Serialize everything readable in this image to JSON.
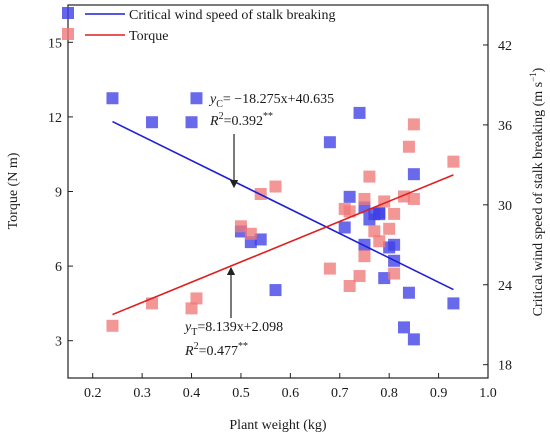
{
  "chart_data": {
    "type": "scatter",
    "xlabel": "Plant weight (kg)",
    "ylabel_left": "Torque (N m)",
    "ylabel_right_prefix": "Critical wind speed of stalk breaking (m s",
    "ylabel_right_sup": "−1",
    "ylabel_right_suffix": ")",
    "xlim": [
      0.15,
      1.0
    ],
    "ylim_left": [
      1.5,
      16.5
    ],
    "ylim_right": [
      17.0,
      45.0
    ],
    "x_ticks": [
      0.2,
      0.3,
      0.4,
      0.5,
      0.6,
      0.7,
      0.8,
      0.9,
      1.0
    ],
    "y_left_ticks": [
      3,
      6,
      9,
      12,
      15
    ],
    "y_right_ticks": [
      18,
      24,
      30,
      36,
      42
    ],
    "grid": false,
    "legend_position": "top-left",
    "series": [
      {
        "name": "Critical wind speed of stalk breaking",
        "axis": "right",
        "color": "#3f3fe6",
        "points": [
          [
            0.24,
            38.0
          ],
          [
            0.32,
            36.2
          ],
          [
            0.4,
            36.2
          ],
          [
            0.41,
            38.0
          ],
          [
            0.5,
            28.0
          ],
          [
            0.52,
            27.2
          ],
          [
            0.54,
            27.4
          ],
          [
            0.57,
            23.6
          ],
          [
            0.68,
            34.7
          ],
          [
            0.71,
            28.3
          ],
          [
            0.72,
            30.6
          ],
          [
            0.74,
            36.9
          ],
          [
            0.75,
            29.8
          ],
          [
            0.76,
            28.9
          ],
          [
            0.77,
            29.3
          ],
          [
            0.78,
            29.3
          ],
          [
            0.79,
            24.5
          ],
          [
            0.8,
            26.8
          ],
          [
            0.81,
            25.8
          ],
          [
            0.81,
            27.0
          ],
          [
            0.83,
            20.8
          ],
          [
            0.84,
            23.4
          ],
          [
            0.85,
            19.9
          ],
          [
            0.85,
            32.3
          ],
          [
            0.93,
            22.6
          ],
          [
            0.75,
            27.0
          ],
          [
            0.78,
            29.4
          ]
        ]
      },
      {
        "name": "Torque",
        "axis": "left",
        "color": "#f07878",
        "points": [
          [
            0.24,
            3.6
          ],
          [
            0.32,
            4.5
          ],
          [
            0.4,
            4.3
          ],
          [
            0.41,
            4.7
          ],
          [
            0.5,
            7.6
          ],
          [
            0.52,
            7.3
          ],
          [
            0.54,
            8.9
          ],
          [
            0.57,
            9.2
          ],
          [
            0.68,
            5.9
          ],
          [
            0.71,
            8.3
          ],
          [
            0.72,
            5.2
          ],
          [
            0.74,
            5.6
          ],
          [
            0.75,
            8.7
          ],
          [
            0.76,
            9.6
          ],
          [
            0.77,
            7.4
          ],
          [
            0.78,
            7.0
          ],
          [
            0.79,
            8.6
          ],
          [
            0.8,
            7.5
          ],
          [
            0.81,
            8.1
          ],
          [
            0.81,
            5.7
          ],
          [
            0.83,
            8.8
          ],
          [
            0.84,
            10.8
          ],
          [
            0.85,
            11.7
          ],
          [
            0.85,
            8.7
          ],
          [
            0.93,
            10.2
          ],
          [
            0.75,
            6.4
          ],
          [
            0.72,
            8.2
          ]
        ]
      }
    ],
    "fit_lines": [
      {
        "series": "Critical wind speed of stalk breaking",
        "axis": "right",
        "color": "#1f1fd6",
        "slope": -18.275,
        "intercept": 40.635,
        "x_range": [
          0.24,
          0.93
        ]
      },
      {
        "series": "Torque",
        "axis": "left",
        "color": "#e01f1f",
        "slope": 8.139,
        "intercept": 2.098,
        "x_range": [
          0.24,
          0.93
        ]
      }
    ],
    "annotations": {
      "wind_eq_y": "y",
      "wind_eq_sub": "C",
      "wind_eq_rest": "= −18.275x+40.635",
      "wind_r2_base": "R",
      "wind_r2_sup": "2",
      "wind_r2_value": "=0.392",
      "wind_r2_stars": "**",
      "torque_eq_y": "y",
      "torque_eq_sub": "T",
      "torque_eq_rest": "=8.139x+2.098",
      "torque_r2_base": "R",
      "torque_r2_sup": "2",
      "torque_r2_value": "=0.477",
      "torque_r2_stars": "**"
    }
  }
}
